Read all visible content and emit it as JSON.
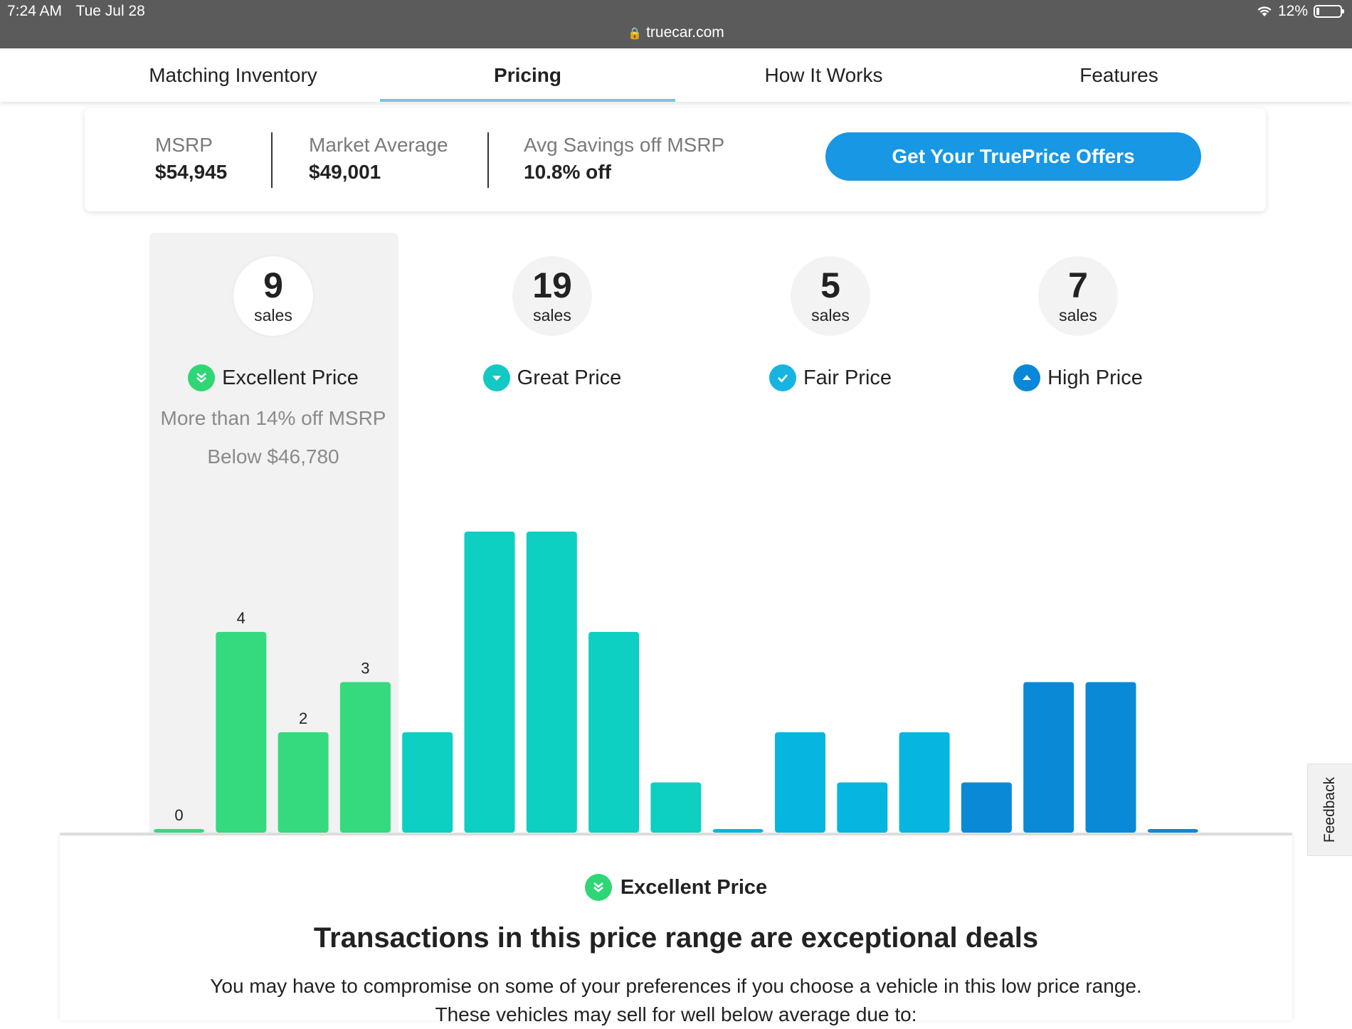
{
  "status": {
    "time": "7:24 AM",
    "date": "Tue Jul 28",
    "battery": "12%"
  },
  "browser": {
    "url": "truecar.com"
  },
  "tabs": [
    {
      "label": "Matching Inventory",
      "active": false
    },
    {
      "label": "Pricing",
      "active": true
    },
    {
      "label": "How It Works",
      "active": false
    },
    {
      "label": "Features",
      "active": false
    }
  ],
  "summary": {
    "msrp_label": "MSRP",
    "msrp_value": "$54,945",
    "market_label": "Market Average",
    "market_value": "$49,001",
    "savings_label": "Avg Savings off MSRP",
    "savings_value": "10.8% off",
    "cta_label": "Get Your TruePrice Offers"
  },
  "categories": [
    {
      "count": "9",
      "unit": "sales",
      "name": "Excellent Price",
      "detail1": "More than 14% off MSRP",
      "detail2": "Below $46,780",
      "icon": "double-chevron-down-icon",
      "color": "#2fd675"
    },
    {
      "count": "19",
      "unit": "sales",
      "name": "Great Price",
      "icon": "chevron-down-icon",
      "color": "#12c9c3"
    },
    {
      "count": "5",
      "unit": "sales",
      "name": "Fair Price",
      "icon": "check-icon",
      "color": "#17b4e2"
    },
    {
      "count": "7",
      "unit": "sales",
      "name": "High Price",
      "icon": "chevron-up-icon",
      "color": "#0a87d8"
    }
  ],
  "chart_data": {
    "type": "bar",
    "values": [
      0,
      4,
      2,
      3,
      2,
      6,
      6,
      4,
      1,
      0,
      2,
      1,
      2,
      1,
      3,
      3,
      0
    ],
    "colors": [
      "#35da7e",
      "#35da7e",
      "#35da7e",
      "#35da7e",
      "#0dcfc2",
      "#0dcfc2",
      "#0dcfc2",
      "#0dcfc2",
      "#0dcfc2",
      "#07b6e0",
      "#07b6e0",
      "#07b6e0",
      "#07b6e0",
      "#0a8ad6",
      "#0a8ad6",
      "#0a8ad6",
      "#0a8ad6"
    ],
    "value_labels": [
      "0",
      "4",
      "2",
      "3"
    ],
    "ylim": [
      0,
      6
    ]
  },
  "feedback_label": "Feedback",
  "panel": {
    "title": "Excellent Price",
    "heading": "Transactions in this price range are exceptional deals",
    "text": "You may have to compromise on some of your preferences if you choose a vehicle in this low price range. These vehicles may sell for well below average due to:"
  }
}
